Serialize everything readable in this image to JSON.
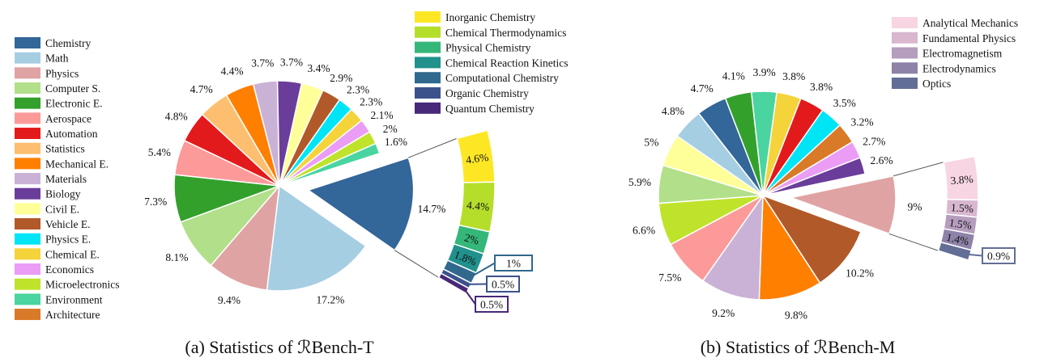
{
  "chart_data": [
    {
      "type": "pie",
      "caption": "(a) Statistics of ℛBench-T",
      "categories": [
        "Chemistry",
        "Math",
        "Physics",
        "Computer S.",
        "Electronic E.",
        "Aerospace",
        "Automation",
        "Statistics",
        "Mechanical E.",
        "Materials",
        "Biology",
        "Civil E.",
        "Vehicle E.",
        "Physics E.",
        "Chemical E.",
        "Economics",
        "Microelectronics",
        "Environment"
      ],
      "values": [
        14.7,
        17.2,
        9.4,
        8.1,
        7.3,
        5.4,
        4.8,
        4.7,
        4.4,
        3.7,
        3.7,
        3.4,
        2.9,
        2.3,
        2.3,
        2.1,
        2,
        1.6
      ],
      "labels": [
        "14.7%",
        "17.2%",
        "9.4%",
        "8.1%",
        "7.3%",
        "5.4%",
        "4.8%",
        "4.7%",
        "4.4%",
        "3.7%",
        "3.7%",
        "3.4%",
        "2.9%",
        "2.3%",
        "2.3%",
        "2.1%",
        "2%",
        "1.6%"
      ],
      "exploded": "Chemistry",
      "legend": [
        {
          "label": "Chemistry",
          "color": "#336699"
        },
        {
          "label": "Math",
          "color": "#a6cee3"
        },
        {
          "label": "Physics",
          "color": "#e0a3a3"
        },
        {
          "label": "Computer S.",
          "color": "#b2df8a"
        },
        {
          "label": "Electronic E.",
          "color": "#33a02c"
        },
        {
          "label": "Aerospace",
          "color": "#fb9a99"
        },
        {
          "label": "Automation",
          "color": "#e31a1c"
        },
        {
          "label": "Statistics",
          "color": "#fdbf6f"
        },
        {
          "label": "Mechanical E.",
          "color": "#ff7f00"
        },
        {
          "label": "Materials",
          "color": "#cab2d6"
        },
        {
          "label": "Biology",
          "color": "#6a3d9a"
        },
        {
          "label": "Civil E.",
          "color": "#ffff99"
        },
        {
          "label": "Vehicle E.",
          "color": "#b15928"
        },
        {
          "label": "Physics E.",
          "color": "#00e5f5"
        },
        {
          "label": "Chemical E.",
          "color": "#f5d33a"
        },
        {
          "label": "Economics",
          "color": "#eb9cf5"
        },
        {
          "label": "Microelectronics",
          "color": "#bfe32b"
        },
        {
          "label": "Environment",
          "color": "#4ad4a0"
        },
        {
          "label": "Architecture",
          "color": "#d97a28"
        }
      ],
      "breakdown": {
        "categories": [
          "Inorganic Chemistry",
          "Chemical Thermodynamics",
          "Physical Chemistry",
          "Chemical Reaction Kinetics",
          "Computational Chemistry",
          "Organic Chemistry",
          "Quantum Chemistry"
        ],
        "values": [
          4.6,
          4.4,
          2,
          1.8,
          1,
          0.5,
          0.5
        ],
        "labels": [
          "4.6%",
          "4.4%",
          "2%",
          "1.8%",
          "1%",
          "0.5%",
          "0.5%"
        ],
        "colors": [
          "#fde725",
          "#b5de2b",
          "#35b779",
          "#21918c",
          "#31688e",
          "#3b528b",
          "#482878"
        ]
      }
    },
    {
      "type": "pie",
      "caption": "(b) Statistics of ℛBench-M",
      "categories": [
        "Physics",
        "Vehicle E.",
        "Mechanical E.",
        "Materials",
        "Aerospace",
        "Microelectronics",
        "Computer S.",
        "Civil E.",
        "Math",
        "Chemistry",
        "Electronic E.",
        "Environment",
        "Chemical E.",
        "Automation",
        "Physics E.",
        "Architecture",
        "Economics",
        "Biology"
      ],
      "values": [
        9,
        10.2,
        9.8,
        9.2,
        7.5,
        6.6,
        5.9,
        5,
        4.8,
        4.7,
        4.1,
        3.9,
        3.8,
        3.8,
        3.5,
        3.2,
        2.7,
        2.6
      ],
      "labels": [
        "9%",
        "10.2%",
        "9.8%",
        "9.2%",
        "7.5%",
        "6.6%",
        "5.9%",
        "5%",
        "4.8%",
        "4.7%",
        "4.1%",
        "3.9%",
        "3.8%",
        "3.8%",
        "3.5%",
        "3.2%",
        "2.7%",
        "2.6%"
      ],
      "colors": [
        "#e0a3a3",
        "#b15928",
        "#ff7f00",
        "#cab2d6",
        "#fb9a99",
        "#bfe32b",
        "#b2df8a",
        "#ffff99",
        "#a6cee3",
        "#336699",
        "#33a02c",
        "#4ad4a0",
        "#f5d33a",
        "#e31a1c",
        "#00e5f5",
        "#d97a28",
        "#eb9cf5",
        "#6a3d9a"
      ],
      "exploded": "Physics",
      "breakdown": {
        "categories": [
          "Analytical Mechanics",
          "Fundamental Physics",
          "Electromagnetism",
          "Electrodynamics",
          "Optics"
        ],
        "values": [
          3.8,
          1.5,
          1.5,
          1.4,
          0.9
        ],
        "labels": [
          "3.8%",
          "1.5%",
          "1.5%",
          "1.4%",
          "0.9%"
        ],
        "colors": [
          "#f8d5e3",
          "#d8b7cf",
          "#b59dbd",
          "#8e82a8",
          "#636e96"
        ]
      }
    }
  ]
}
